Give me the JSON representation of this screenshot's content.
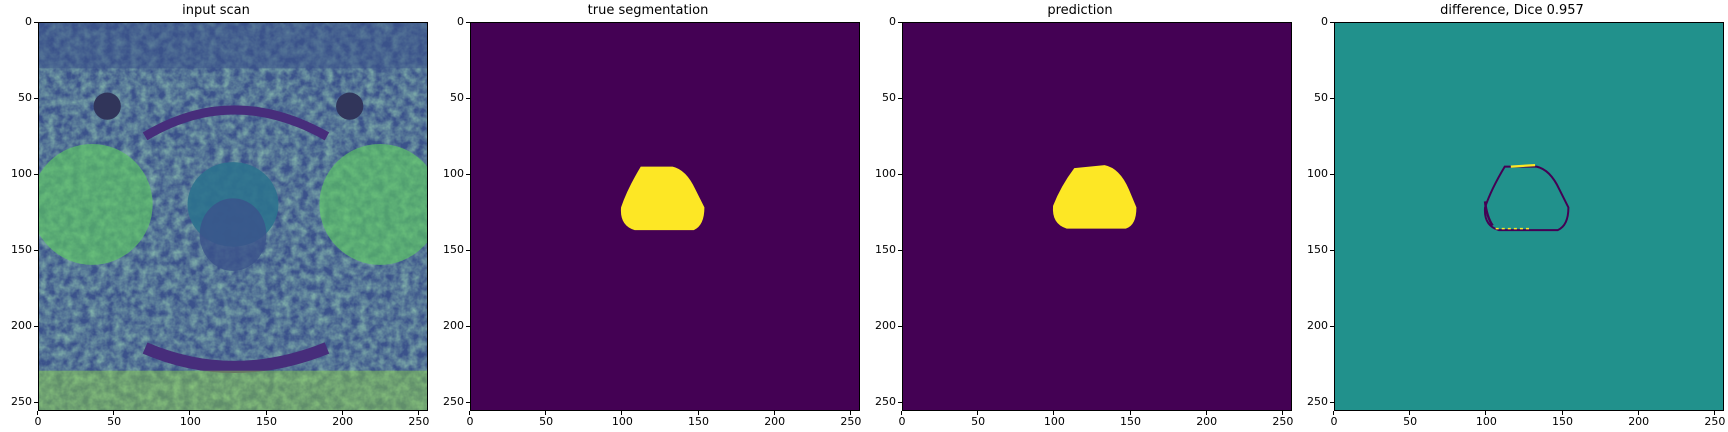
{
  "panels": [
    {
      "title": "input scan"
    },
    {
      "title": "true segmentation"
    },
    {
      "title": "prediction"
    },
    {
      "title": "difference, Dice 0.957"
    }
  ],
  "axes": {
    "y_ticks": [
      "0",
      "50",
      "100",
      "150",
      "200",
      "250"
    ],
    "x_ticks": [
      "0",
      "50",
      "100",
      "150",
      "200",
      "250"
    ]
  },
  "colors": {
    "viridis_dark": "#440154",
    "viridis_teal": "#21918c",
    "viridis_yellow": "#fde725",
    "viridis_green": "#35b779"
  }
}
